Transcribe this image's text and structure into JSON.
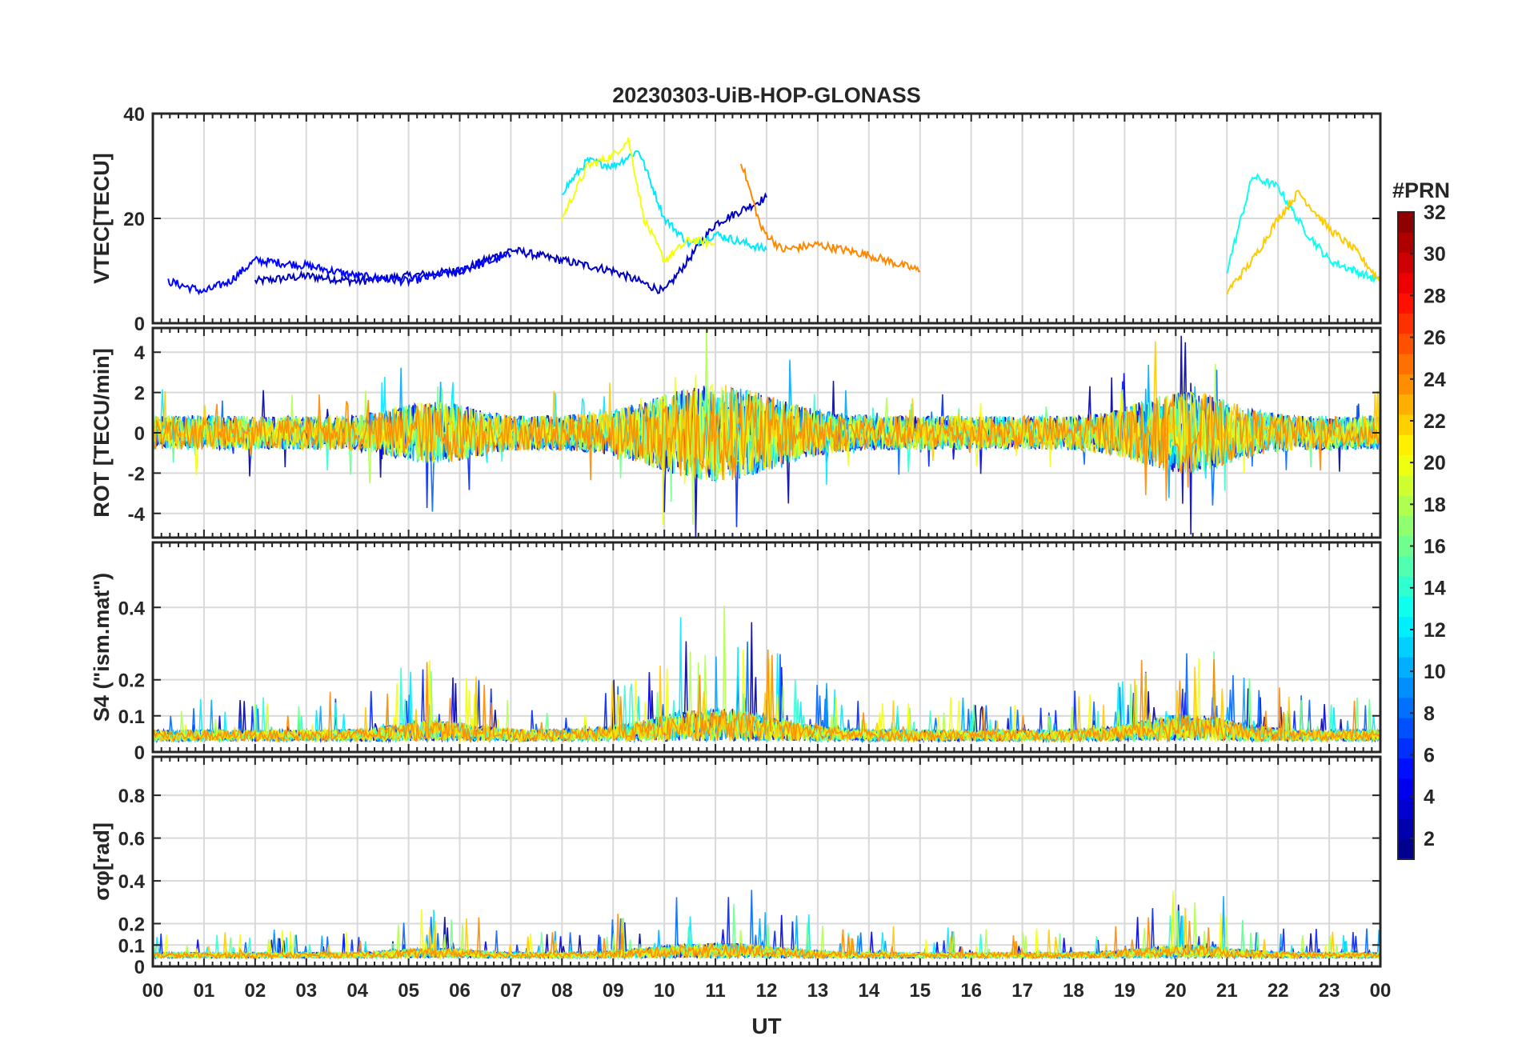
{
  "chart_data": {
    "type": "line",
    "title": "20230303-UiB-HOP-GLONASS",
    "xlabel": "UT",
    "x_ticks": [
      "00",
      "01",
      "02",
      "03",
      "04",
      "05",
      "06",
      "07",
      "08",
      "09",
      "10",
      "11",
      "12",
      "13",
      "14",
      "15",
      "16",
      "17",
      "18",
      "19",
      "20",
      "21",
      "22",
      "23",
      "00"
    ],
    "x_range_hours": [
      0,
      24
    ],
    "grid": true,
    "colormap": "jet",
    "colorbar": {
      "label": "#PRN",
      "range": [
        1,
        32
      ],
      "ticks": [
        "2",
        "4",
        "6",
        "8",
        "10",
        "12",
        "14",
        "16",
        "18",
        "20",
        "22",
        "24",
        "26",
        "28",
        "30",
        "32"
      ],
      "placement": "right"
    },
    "panels": [
      {
        "ylabel": "VTEC[TECU]",
        "ylim": [
          0,
          40
        ],
        "yticks": [
          "0",
          "20",
          "40"
        ],
        "series": [
          {
            "prn": 3,
            "x": [
              2.0,
              3.0,
              4.0,
              5.0,
              6.0,
              7.0,
              8.0,
              9.0,
              10.0,
              11.0,
              12.0
            ],
            "y": [
              8,
              9,
              8,
              9,
              10,
              14,
              12,
              10,
              6,
              19,
              24
            ]
          },
          {
            "prn": 5,
            "x": [
              0.3,
              1.0,
              1.5,
              2.0,
              3.0,
              4.0,
              5.0,
              6.0,
              7.0
            ],
            "y": [
              8,
              6,
              8,
              12,
              11,
              9,
              8,
              10,
              13
            ]
          },
          {
            "prn": 12,
            "x": [
              8.0,
              8.5,
              9.0,
              9.5,
              10.0,
              10.5,
              11.0,
              12.0
            ],
            "y": [
              25,
              31,
              30,
              33,
              20,
              15,
              17,
              14
            ]
          },
          {
            "prn": 20,
            "x": [
              8.0,
              8.5,
              9.0,
              9.3,
              9.6,
              10.0,
              10.5,
              11.0
            ],
            "y": [
              20,
              30,
              32,
              35,
              20,
              12,
              16,
              15
            ]
          },
          {
            "prn": 24,
            "x": [
              11.5,
              11.9,
              12.3,
              13.0,
              14.0,
              15.0
            ],
            "y": [
              31,
              18,
              14,
              15,
              13,
              10
            ]
          },
          {
            "prn": 13,
            "x": [
              21.0,
              21.5,
              22.0,
              22.5,
              23.0,
              23.5,
              24.0
            ],
            "y": [
              10,
              28,
              26,
              18,
              12,
              10,
              8
            ]
          },
          {
            "prn": 22,
            "x": [
              21.0,
              21.5,
              22.0,
              22.4,
              23.0,
              23.5,
              24.0
            ],
            "y": [
              6,
              12,
              20,
              25,
              18,
              14,
              8
            ]
          }
        ]
      },
      {
        "ylabel": "ROT [TECU/min]",
        "ylim": [
          -5.2,
          5.2
        ],
        "yticks": [
          "-4",
          "-2",
          "0",
          "2",
          "4"
        ],
        "series": []
      },
      {
        "ylabel": "S4 (\"ism.mat\")",
        "ylim": [
          0,
          0.58
        ],
        "yticks": [
          "0",
          "0.1",
          "0.2",
          "0.4"
        ],
        "series": []
      },
      {
        "ylabel": "σφ[rad]",
        "ylim": [
          0,
          0.98
        ],
        "yticks": [
          "0",
          "0.1",
          "0.2",
          "0.4",
          "0.6",
          "0.8"
        ],
        "series": []
      }
    ]
  }
}
